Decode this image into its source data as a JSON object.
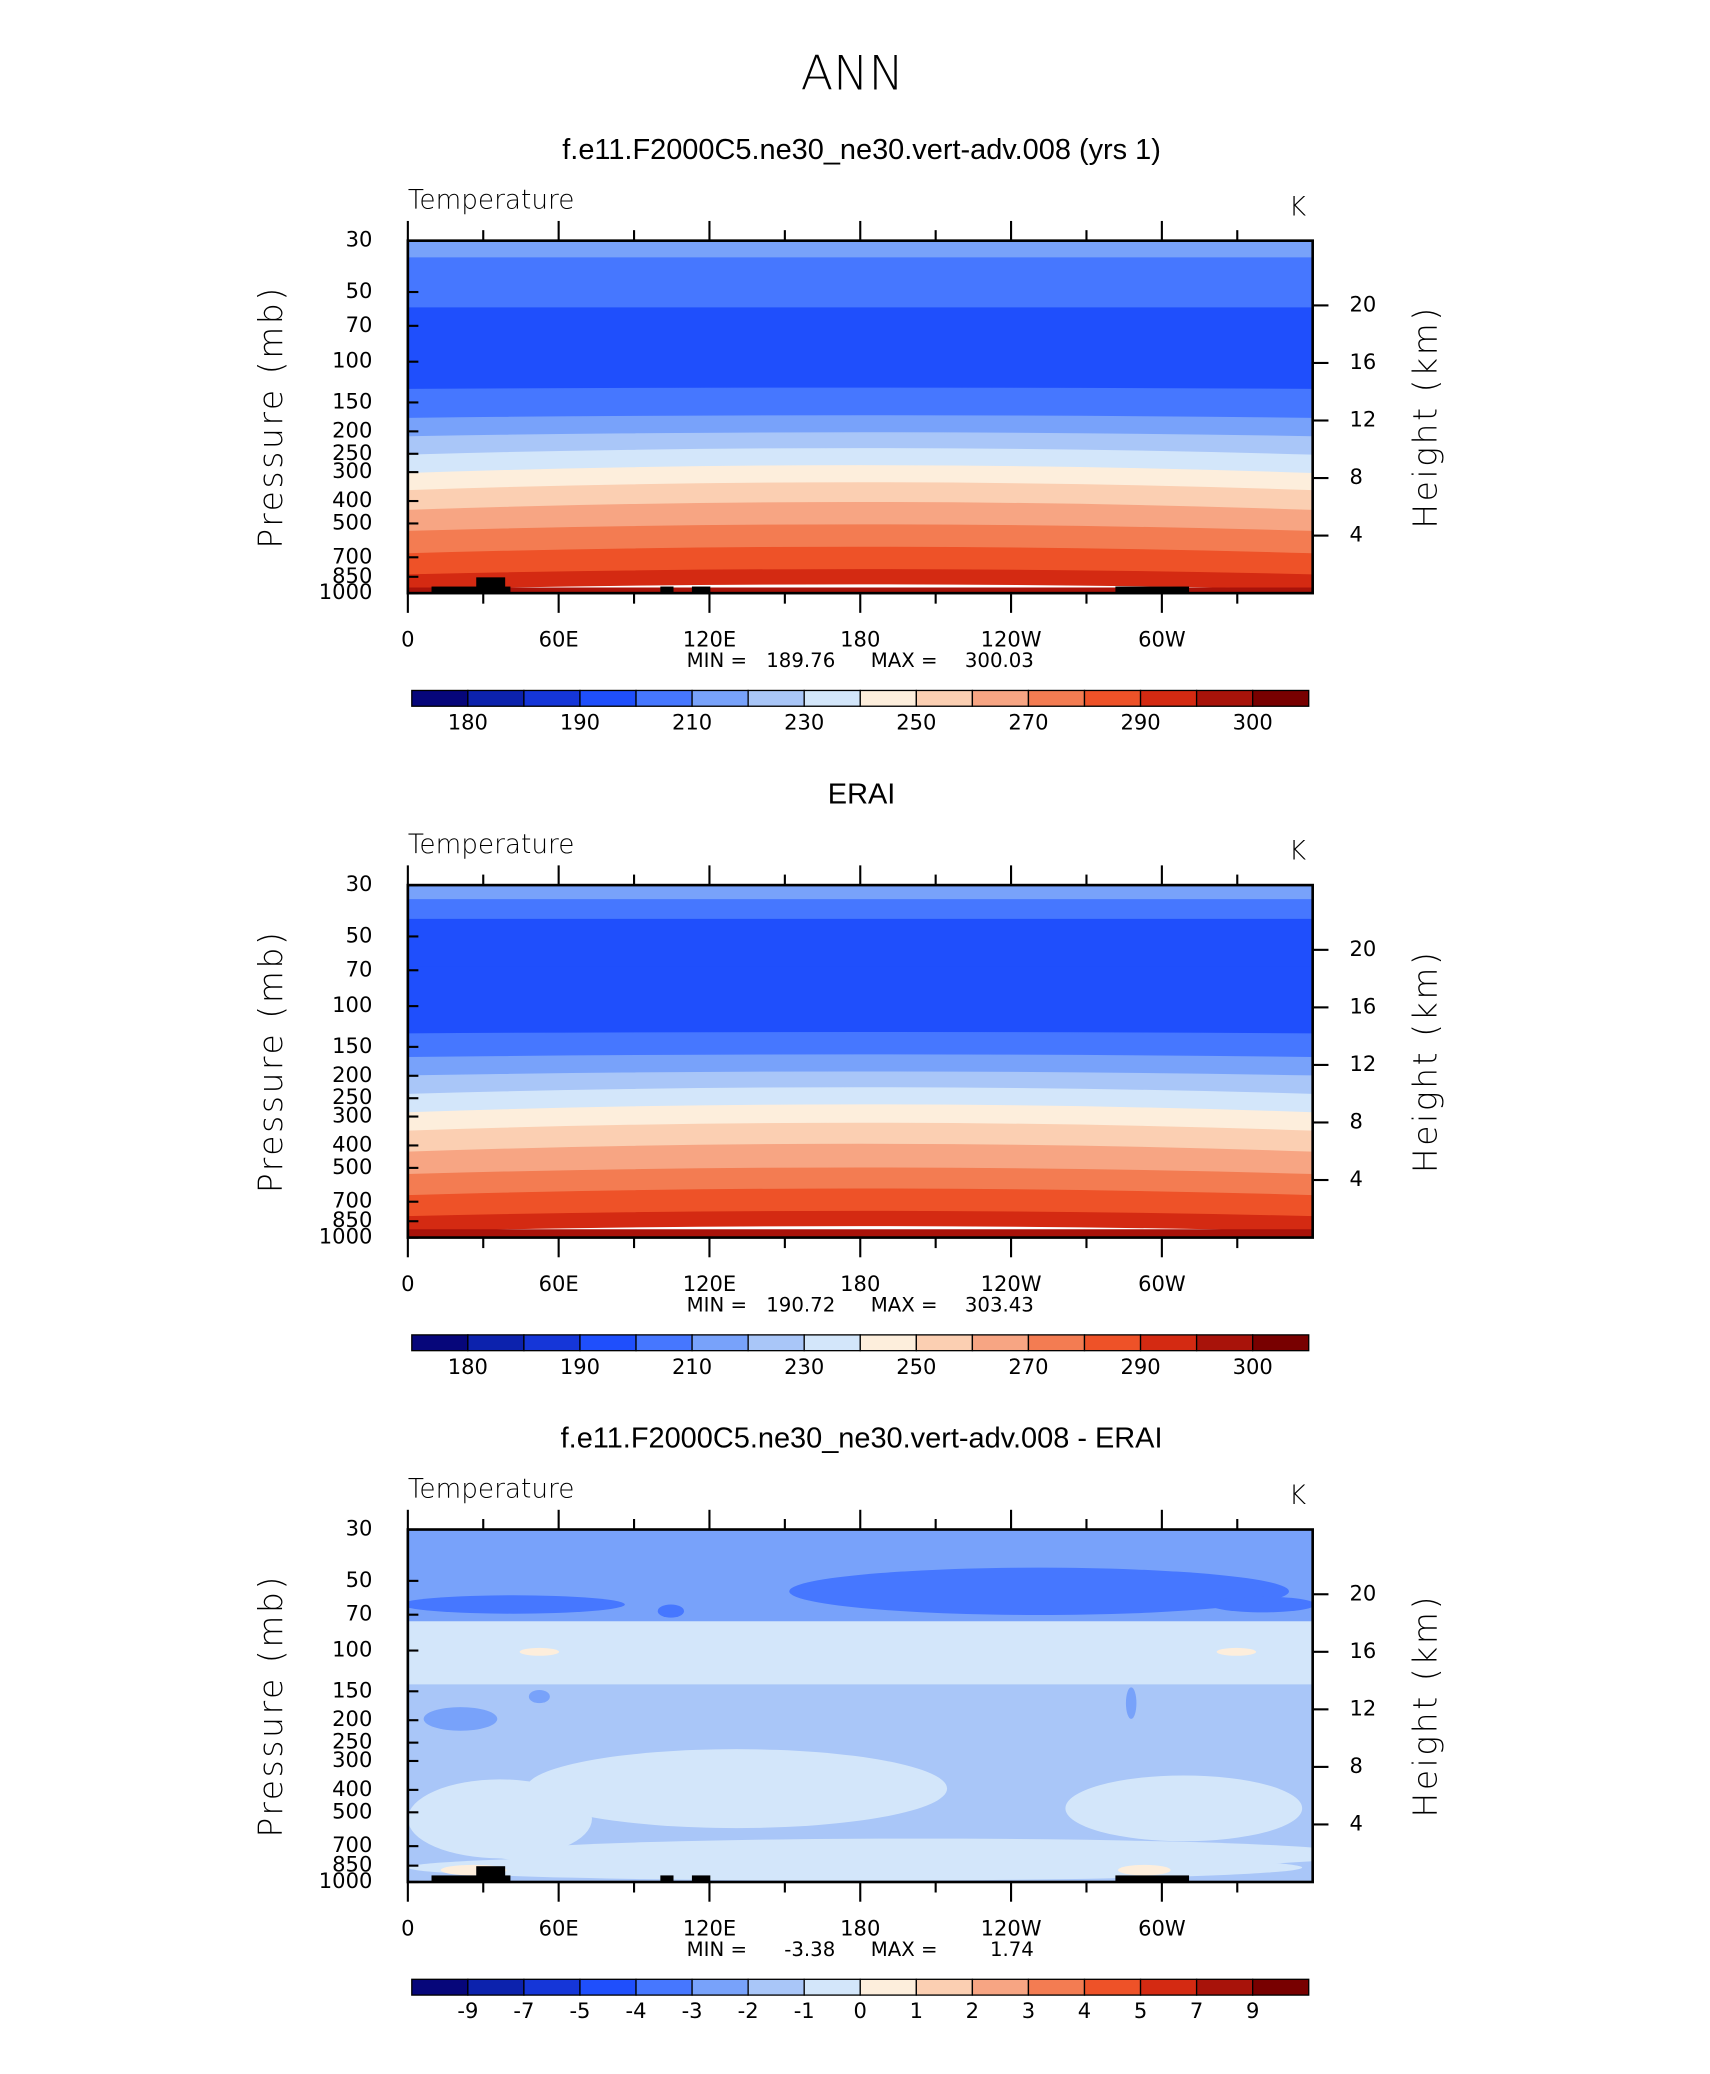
{
  "title": "ANN",
  "chart_data": [
    {
      "type": "contour",
      "title": "f.e11.F2000C5.ne30_ne30.vert-adv.008 (yrs 1)",
      "subtitle": "Temperature",
      "units": "K",
      "ylabel": "Pressure (mb)",
      "y2label": "Height (km)",
      "ylog": true,
      "ylim": [
        1000,
        30
      ],
      "yticks": [
        30,
        50,
        70,
        100,
        150,
        200,
        250,
        300,
        400,
        500,
        700,
        850,
        1000
      ],
      "y2lim": [
        0,
        24.5
      ],
      "y2ticks": [
        4,
        8,
        12,
        16,
        20
      ],
      "xlim": [
        0,
        360
      ],
      "xticks": [
        0,
        {
          "value": 60,
          "label": "60E"
        },
        {
          "value": 120,
          "label": "120E"
        },
        180,
        {
          "value": 240,
          "label": "120W"
        },
        {
          "value": 300,
          "label": "60W"
        }
      ],
      "min_label": "MIN =",
      "min": 189.76,
      "max_label": "MAX =",
      "max": 300.03,
      "colorbar": {
        "levels": [
          180,
          190,
          210,
          230,
          250,
          270,
          290,
          300
        ],
        "colors": [
          "#06067a",
          "#0c22ad",
          "#1536d8",
          "#1f4ffc",
          "#4677ff",
          "#78a2fa",
          "#a9c6f8",
          "#d3e6fa",
          "#fdeedc",
          "#fbcfb2",
          "#f7a583",
          "#f37c52",
          "#ee5228",
          "#d42a12",
          "#a8130a",
          "#780000"
        ]
      }
    },
    {
      "type": "contour",
      "title": "ERAI",
      "subtitle": "Temperature",
      "units": "K",
      "ylabel": "Pressure (mb)",
      "y2label": "Height (km)",
      "ylog": true,
      "ylim": [
        1000,
        30
      ],
      "yticks": [
        30,
        50,
        70,
        100,
        150,
        200,
        250,
        300,
        400,
        500,
        700,
        850,
        1000
      ],
      "y2lim": [
        0,
        24.5
      ],
      "y2ticks": [
        4,
        8,
        12,
        16,
        20
      ],
      "xlim": [
        0,
        360
      ],
      "xticks": [
        0,
        {
          "value": 60,
          "label": "60E"
        },
        {
          "value": 120,
          "label": "120E"
        },
        180,
        {
          "value": 240,
          "label": "120W"
        },
        {
          "value": 300,
          "label": "60W"
        }
      ],
      "min_label": "MIN =",
      "min": 190.72,
      "max_label": "MAX =",
      "max": 303.43,
      "colorbar": {
        "levels": [
          180,
          190,
          210,
          230,
          250,
          270,
          290,
          300
        ],
        "colors": [
          "#06067a",
          "#0c22ad",
          "#1536d8",
          "#1f4ffc",
          "#4677ff",
          "#78a2fa",
          "#a9c6f8",
          "#d3e6fa",
          "#fdeedc",
          "#fbcfb2",
          "#f7a583",
          "#f37c52",
          "#ee5228",
          "#d42a12",
          "#a8130a",
          "#780000"
        ]
      }
    },
    {
      "type": "contour",
      "title": "f.e11.F2000C5.ne30_ne30.vert-adv.008 - ERAI",
      "subtitle": "Temperature",
      "units": "K",
      "ylabel": "Pressure (mb)",
      "y2label": "Height (km)",
      "ylog": true,
      "ylim": [
        1000,
        30
      ],
      "yticks": [
        30,
        50,
        70,
        100,
        150,
        200,
        250,
        300,
        400,
        500,
        700,
        850,
        1000
      ],
      "y2lim": [
        0,
        24.5
      ],
      "y2ticks": [
        4,
        8,
        12,
        16,
        20
      ],
      "xlim": [
        0,
        360
      ],
      "xticks": [
        0,
        {
          "value": 60,
          "label": "60E"
        },
        {
          "value": 120,
          "label": "120E"
        },
        180,
        {
          "value": 240,
          "label": "120W"
        },
        {
          "value": 300,
          "label": "60W"
        }
      ],
      "min_label": "MIN =",
      "min": -3.38,
      "max_label": "MAX =",
      "max": 1.74,
      "colorbar": {
        "levels": [
          -9,
          -7,
          -5,
          -4,
          -3,
          -2,
          -1,
          0,
          1,
          2,
          3,
          4,
          5,
          7,
          9
        ],
        "colors": [
          "#06067a",
          "#0c22ad",
          "#1536d8",
          "#1f4ffc",
          "#4677ff",
          "#78a2fa",
          "#a9c6f8",
          "#d3e6fa",
          "#fdeedc",
          "#fbcfb2",
          "#f7a583",
          "#f37c52",
          "#ee5228",
          "#d42a12",
          "#a8130a",
          "#780000"
        ]
      }
    }
  ]
}
